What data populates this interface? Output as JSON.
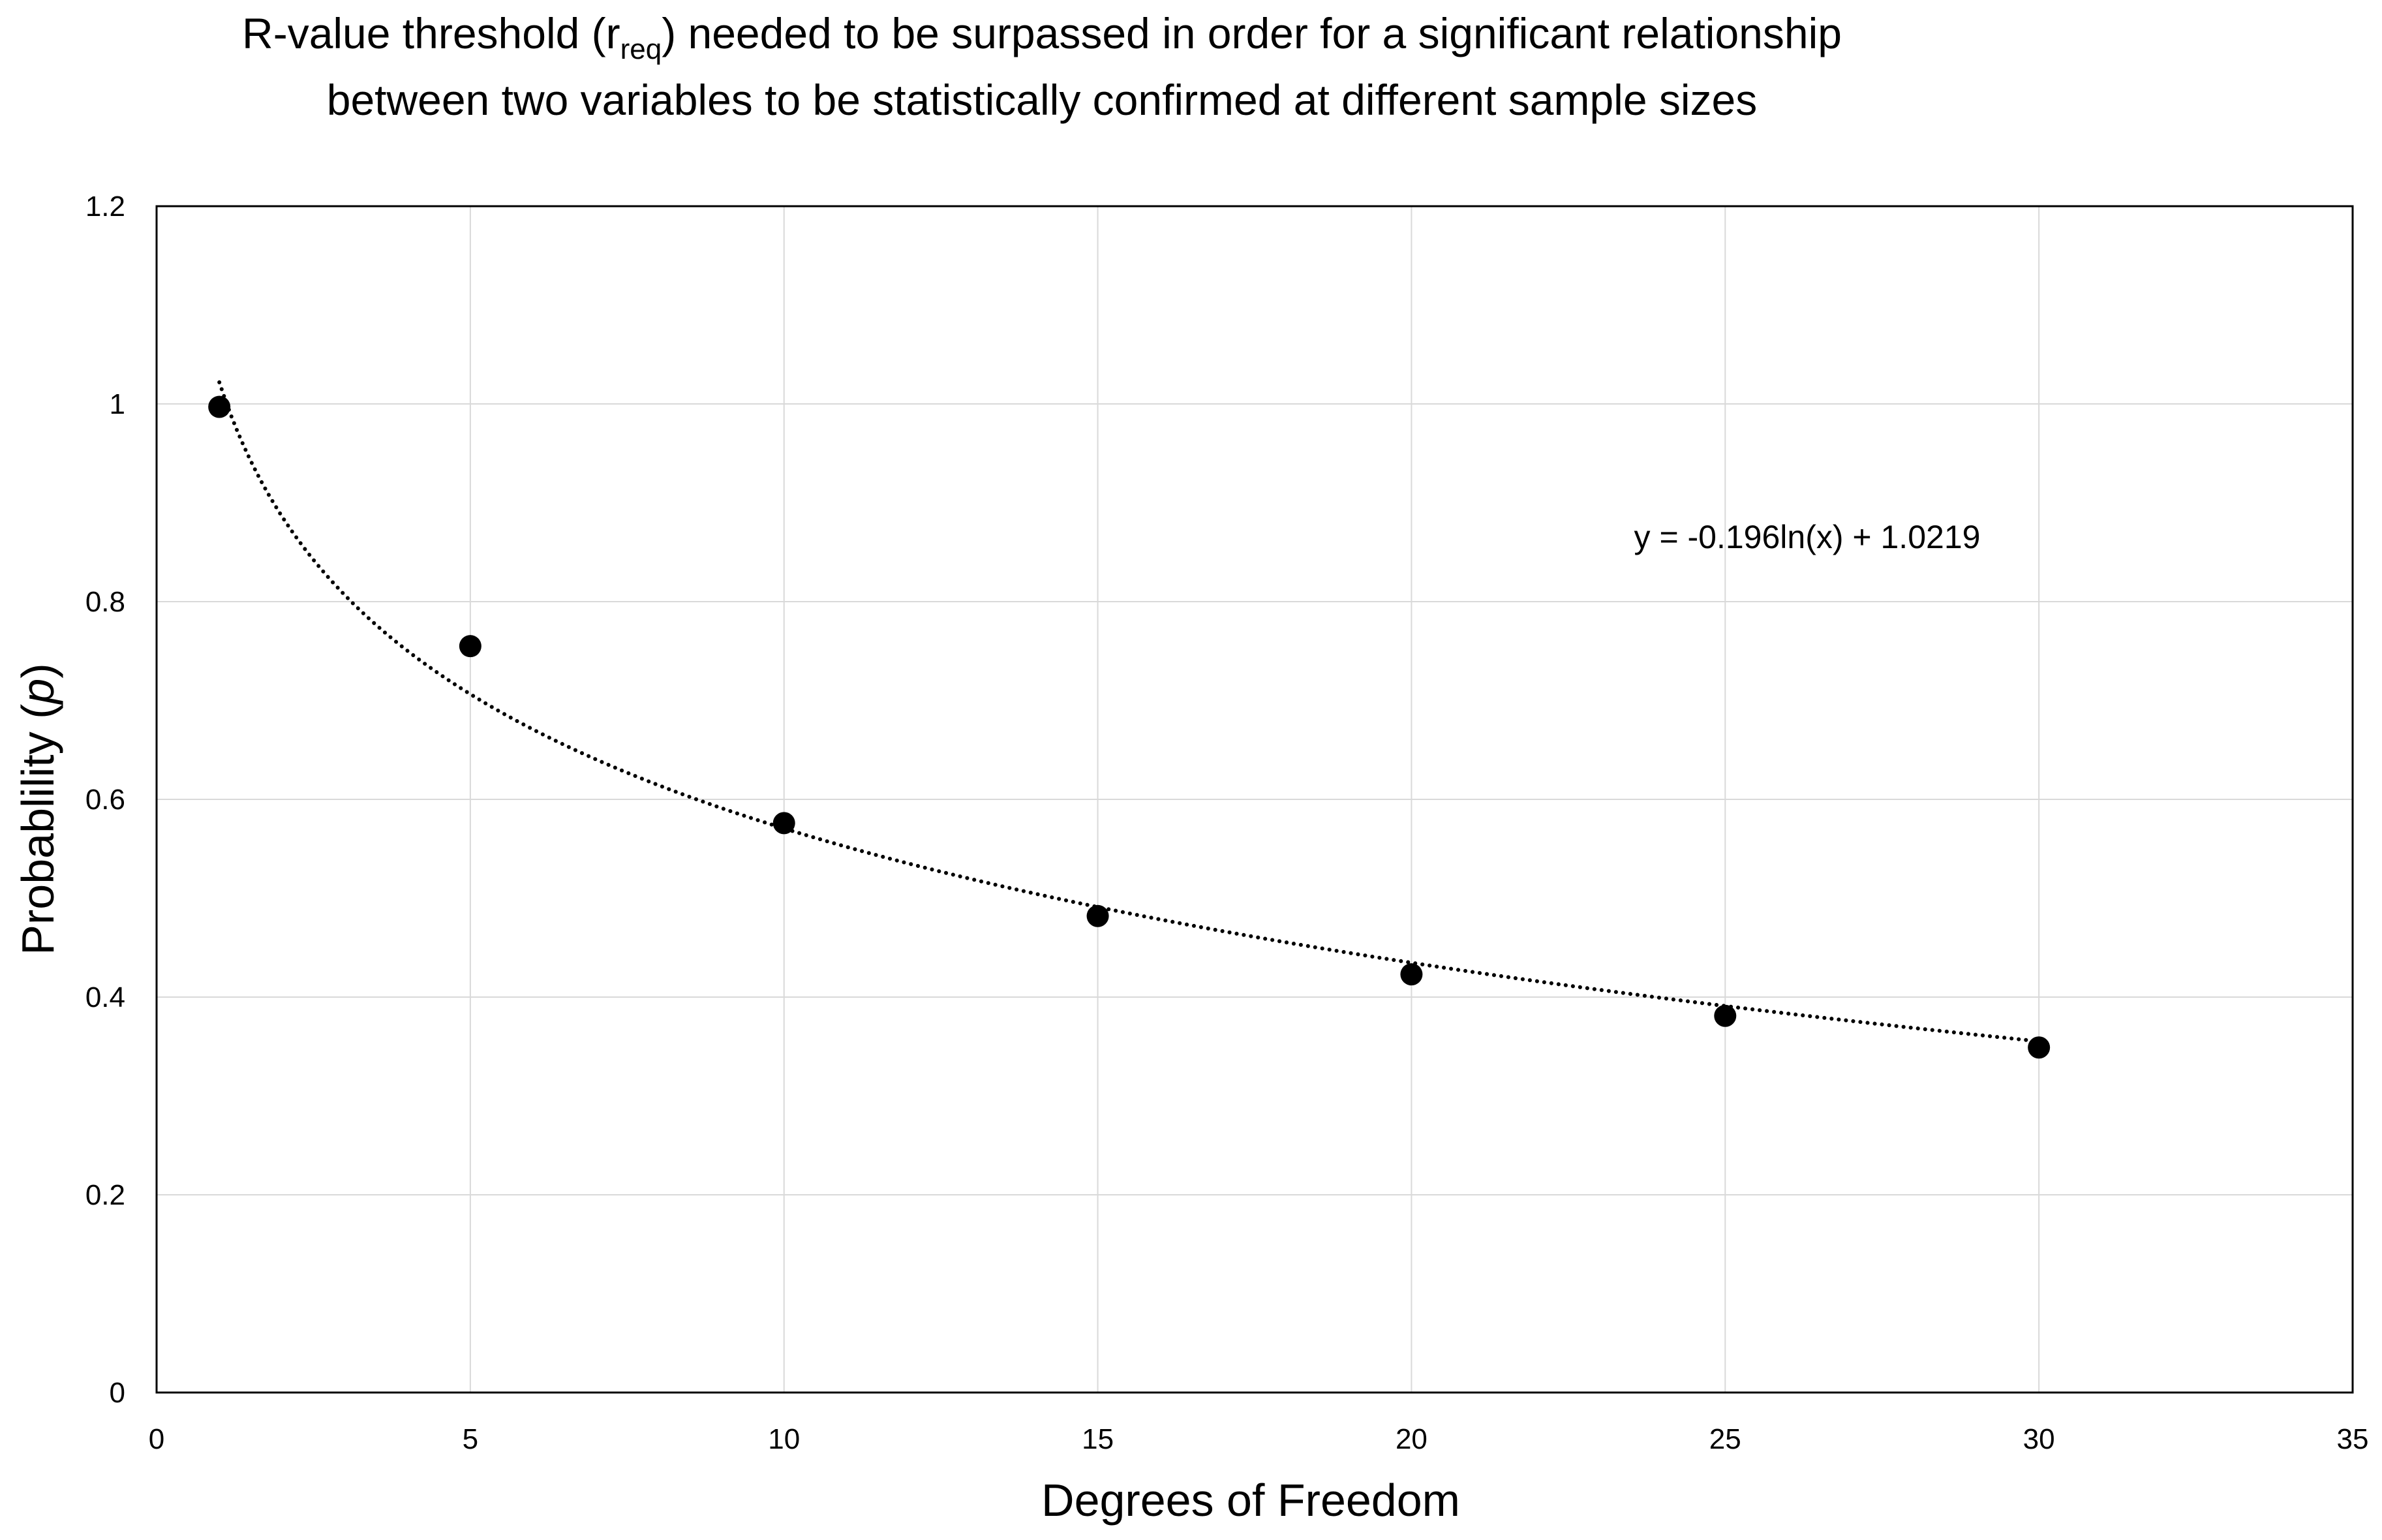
{
  "chart_data": {
    "type": "scatter",
    "title": {
      "before": "R-value threshold (r",
      "subscript": "req",
      "after": ") needed to be surpassed in order for a significant relationship",
      "line2": "between two variables to be statistically confirmed at different sample sizes"
    },
    "xlabel": "Degrees of Freedom",
    "ylabel": {
      "prefix": "Probablility (",
      "italic": "p",
      "suffix": ")"
    },
    "xlim": [
      0,
      35
    ],
    "ylim": [
      0,
      1.2
    ],
    "x_ticks": [
      "0",
      "5",
      "10",
      "15",
      "20",
      "25",
      "30",
      "35"
    ],
    "y_ticks": [
      "0",
      "0.2",
      "0.4",
      "0.6",
      "0.8",
      "1",
      "1.2"
    ],
    "grid": true,
    "legend": "none",
    "series": [
      {
        "x": [
          1,
          5,
          10,
          15,
          20,
          25,
          30
        ],
        "y": [
          0.997,
          0.755,
          0.576,
          0.482,
          0.423,
          0.381,
          0.349
        ]
      }
    ],
    "trendline": {
      "type": "logarithmic",
      "equation": "y = -0.196ln(x) + 1.0219",
      "slope": -0.196,
      "intercept": 1.0219,
      "x_range": [
        1,
        30
      ],
      "style": "dotted"
    },
    "colors": {
      "marker": "#000000",
      "trendline": "#000000",
      "grid": "#d9d9d9",
      "frame": "#000000"
    }
  }
}
